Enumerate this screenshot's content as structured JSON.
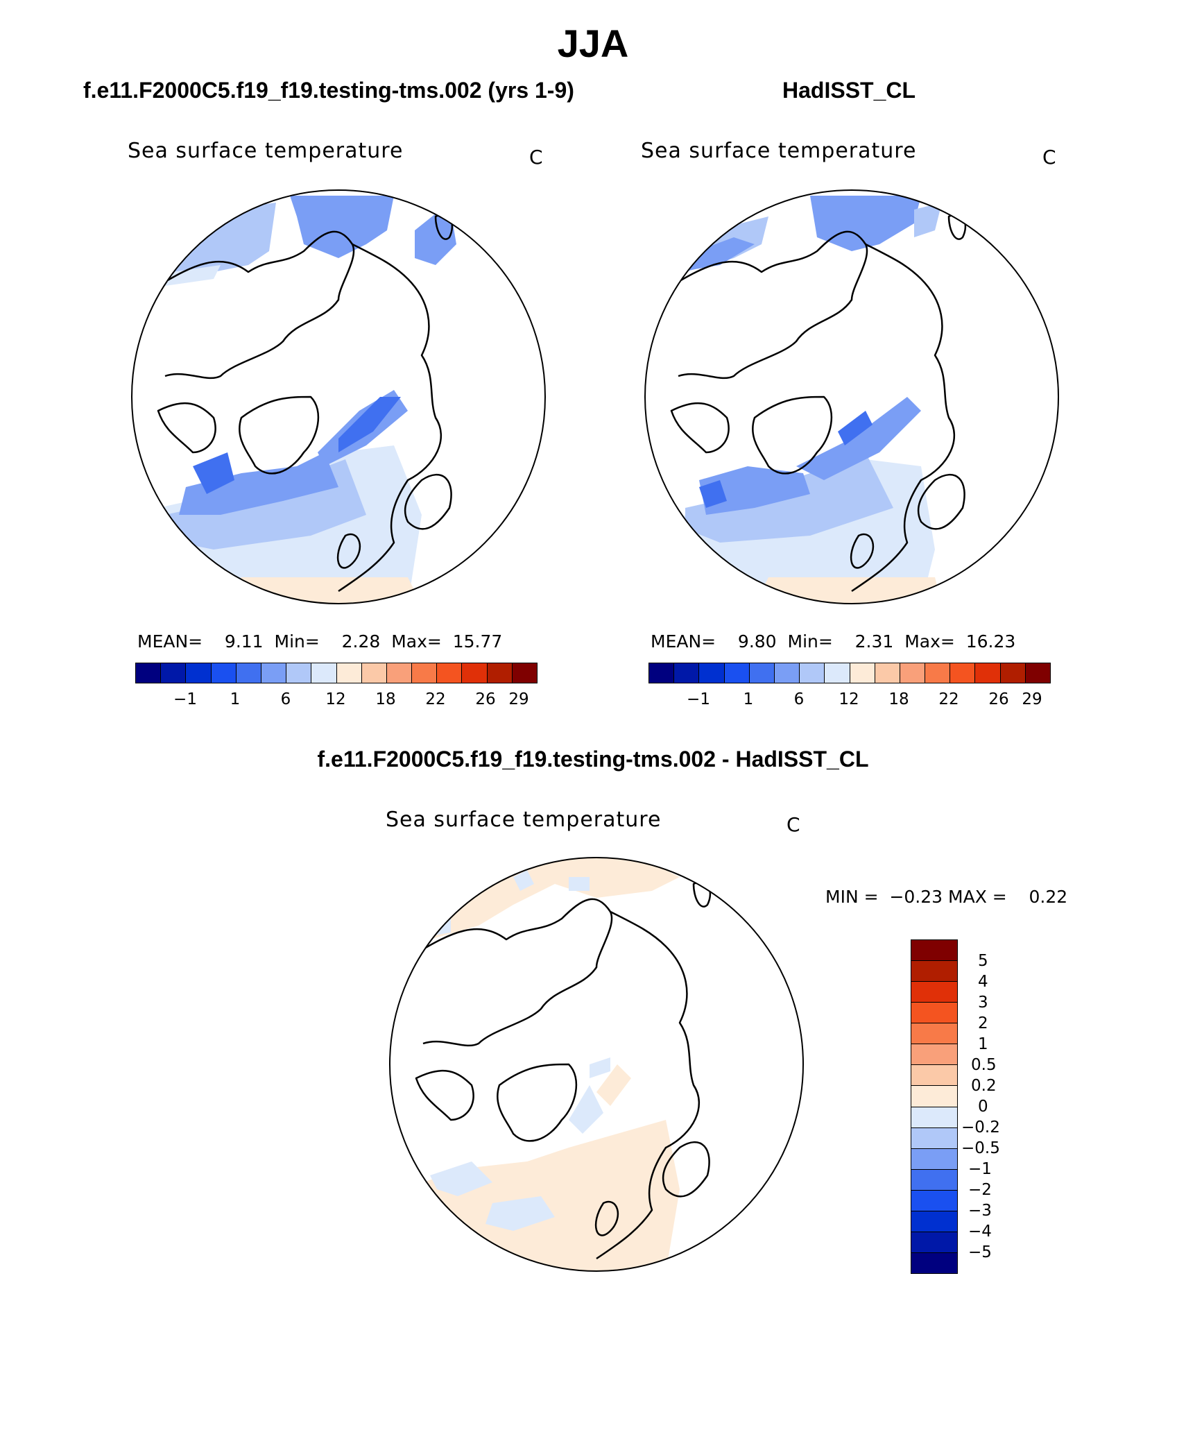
{
  "figure": {
    "season": "JJA"
  },
  "panels": [
    {
      "id": "model",
      "case_title": "f.e11.F2000C5.f19_f19.testing-tms.002 (yrs 1-9)",
      "variable": "Sea surface temperature",
      "units": "C",
      "stats": {
        "mean_label": "MEAN=",
        "mean": "9.11",
        "min_label": "Min=",
        "min": "2.28",
        "max_label": "Max=",
        "max": "15.77"
      }
    },
    {
      "id": "obs",
      "case_title": "HadISST_CL",
      "variable": "Sea surface temperature",
      "units": "C",
      "stats": {
        "mean_label": "MEAN=",
        "mean": "9.80",
        "min_label": "Min=",
        "min": "2.31",
        "max_label": "Max=",
        "max": "16.23"
      }
    },
    {
      "id": "diff",
      "case_title": "f.e11.F2000C5.f19_f19.testing-tms.002 - HadISST_CL",
      "variable": "Sea surface temperature",
      "units": "C",
      "stats": {
        "min_label": "MIN =",
        "min": "−0.23",
        "max_label": "MAX =",
        "max": "0.22"
      }
    }
  ],
  "colorbars": {
    "absolute": {
      "colors": [
        "#00007f",
        "#0018a8",
        "#0030d0",
        "#1a50f0",
        "#4070f0",
        "#7a9ef5",
        "#b0c8f8",
        "#dce9fb",
        "#fdebd8",
        "#fbc9a8",
        "#f9a07a",
        "#f87a48",
        "#f45420",
        "#e03008",
        "#b01e00",
        "#7f0000"
      ],
      "ticks": [
        "−1",
        "1",
        "6",
        "12",
        "18",
        "22",
        "26",
        "29"
      ]
    },
    "difference": {
      "colors": [
        "#00007f",
        "#0018a8",
        "#0030d0",
        "#1a50f0",
        "#4070f0",
        "#7a9ef5",
        "#b0c8f8",
        "#dce9fb",
        "#fdebd8",
        "#fbc9a8",
        "#f9a07a",
        "#f87a48",
        "#f45420",
        "#e03008",
        "#b01e00",
        "#7f0000"
      ],
      "ticks": [
        "5",
        "4",
        "3",
        "2",
        "1",
        "0.5",
        "0.2",
        "0",
        "−0.2",
        "−0.5",
        "−1",
        "−2",
        "−3",
        "−4",
        "−5"
      ]
    }
  }
}
